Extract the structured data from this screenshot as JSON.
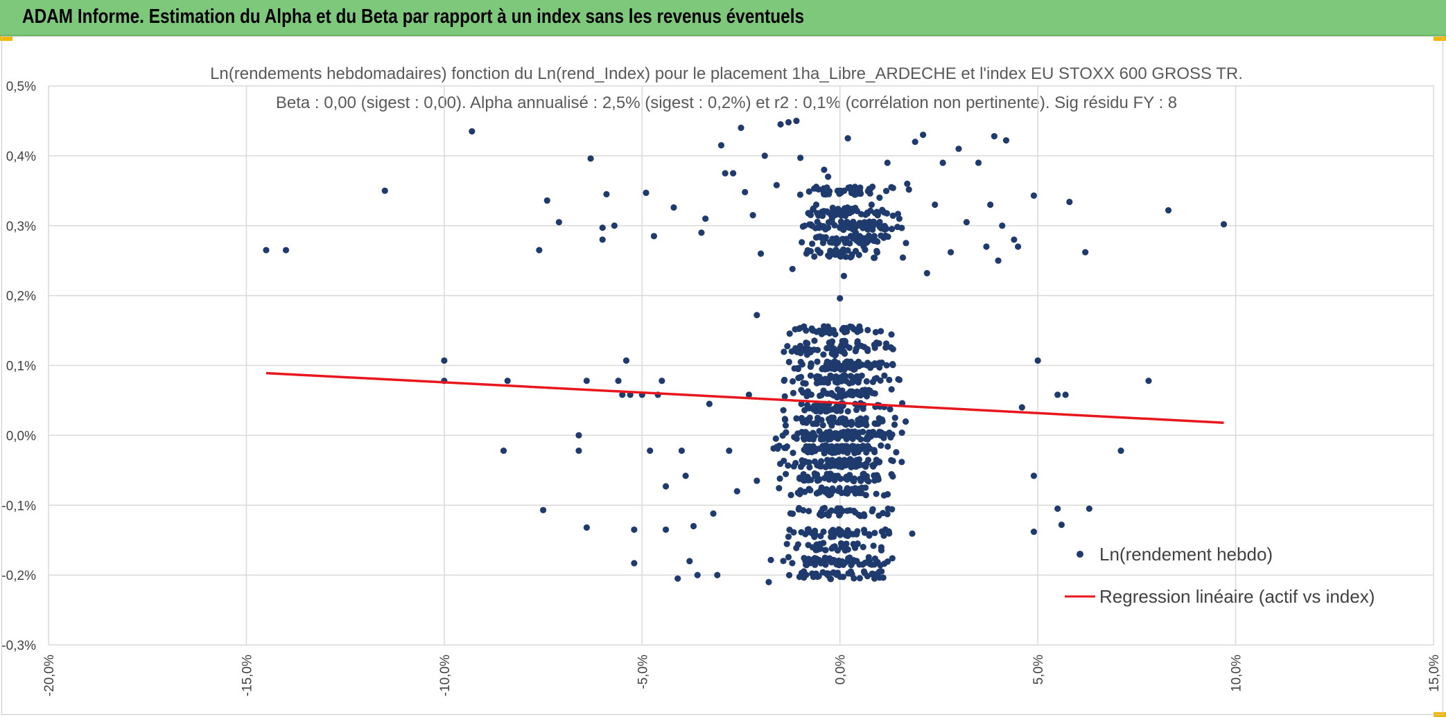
{
  "header": {
    "title": "ADAM Informe. Estimation du Alpha et du Beta par rapport à un index sans les revenus éventuels",
    "bg_color": "#7dc87a",
    "accent_color": "#f2b800"
  },
  "chart_data": {
    "type": "scatter",
    "title": "Ln(rendements hebdomadaires) fonction du Ln(rend_Index) pour le placement 1ha_Libre_ARDECHE et l'index EU STOXX 600 GROSS TR.",
    "subtitle": "Beta : 0,00 (sigest : 0,00). Alpha annualisé : 2,5% (sigest : 0,2%) et r2 : 0,1% (corrélation non pertinente). Sig résidu FY : 8",
    "xlabel": "",
    "ylabel": "",
    "xlim": [
      -0.2,
      0.15
    ],
    "ylim": [
      -0.003,
      0.005
    ],
    "x_ticks": [
      -0.2,
      -0.15,
      -0.1,
      -0.05,
      0,
      0.05,
      0.1,
      0.15
    ],
    "x_tick_labels": [
      "-20,0%",
      "-15,0%",
      "-10,0%",
      "-5,0%",
      "0,0%",
      "5,0%",
      "10,0%",
      "15,0%"
    ],
    "y_ticks": [
      -0.003,
      -0.002,
      -0.001,
      0,
      0.001,
      0.002,
      0.003,
      0.004,
      0.005
    ],
    "y_tick_labels": [
      "-0,3%",
      "-0,2%",
      "-0,1%",
      "0,0%",
      "0,1%",
      "0,2%",
      "0,3%",
      "0,4%",
      "0,5%"
    ],
    "grid": true,
    "legend_position": "bottom-right",
    "series": [
      {
        "name": "Ln(rendement hebdo)",
        "type": "scatter",
        "color": "#1f3b6e",
        "points": [
          [
            -0.145,
            0.00265
          ],
          [
            -0.14,
            0.00265
          ],
          [
            -0.115,
            0.0035
          ],
          [
            -0.093,
            0.00435
          ],
          [
            -0.1,
            0.00107
          ],
          [
            -0.1,
            0.00078
          ],
          [
            -0.084,
            0.00078
          ],
          [
            -0.085,
            -0.00022
          ],
          [
            -0.075,
            -0.00107
          ],
          [
            -0.076,
            0.00265
          ],
          [
            -0.074,
            0.00336
          ],
          [
            -0.071,
            0.00305
          ],
          [
            -0.066,
            0.0
          ],
          [
            -0.066,
            -0.00022
          ],
          [
            -0.064,
            -0.00132
          ],
          [
            -0.064,
            0.00078
          ],
          [
            -0.063,
            0.00396
          ],
          [
            -0.06,
            0.0028
          ],
          [
            -0.06,
            0.00297
          ],
          [
            -0.059,
            0.00345
          ],
          [
            -0.057,
            0.003
          ],
          [
            -0.056,
            0.00078
          ],
          [
            -0.055,
            0.00058
          ],
          [
            -0.054,
            0.00107
          ],
          [
            -0.053,
            0.00058
          ],
          [
            -0.052,
            -0.00135
          ],
          [
            -0.052,
            -0.00183
          ],
          [
            -0.05,
            0.00058
          ],
          [
            -0.049,
            0.00347
          ],
          [
            -0.048,
            -0.00022
          ],
          [
            -0.047,
            0.00285
          ],
          [
            -0.046,
            0.00058
          ],
          [
            -0.045,
            0.00078
          ],
          [
            -0.044,
            -0.00135
          ],
          [
            -0.044,
            -0.00073
          ],
          [
            -0.042,
            0.00326
          ],
          [
            -0.041,
            -0.00205
          ],
          [
            -0.04,
            -0.00022
          ],
          [
            -0.039,
            -0.00058
          ],
          [
            -0.038,
            -0.0018
          ],
          [
            -0.037,
            -0.0013
          ],
          [
            -0.036,
            -0.002
          ],
          [
            -0.035,
            0.0029
          ],
          [
            -0.034,
            0.0031
          ],
          [
            -0.033,
            0.00045
          ],
          [
            -0.032,
            -0.00112
          ],
          [
            -0.031,
            -0.002
          ],
          [
            -0.03,
            0.00415
          ],
          [
            -0.029,
            0.00375
          ],
          [
            -0.028,
            -0.00022
          ],
          [
            -0.027,
            0.00375
          ],
          [
            -0.026,
            -0.0008
          ],
          [
            -0.025,
            0.0044
          ],
          [
            -0.024,
            0.00348
          ],
          [
            -0.023,
            0.00058
          ],
          [
            -0.022,
            0.00315
          ],
          [
            -0.021,
            0.00172
          ],
          [
            -0.021,
            -0.00065
          ],
          [
            -0.02,
            0.0026
          ],
          [
            -0.019,
            0.004
          ],
          [
            -0.018,
            -0.0021
          ],
          [
            -0.016,
            0.00358
          ],
          [
            -0.015,
            0.00445
          ],
          [
            -0.013,
            0.00448
          ],
          [
            -0.012,
            0.00238
          ],
          [
            -0.011,
            0.0045
          ],
          [
            -0.01,
            0.00397
          ],
          [
            -0.008,
            0.00318
          ],
          [
            -0.006,
            0.0033
          ],
          [
            -0.004,
            0.0038
          ],
          [
            -0.003,
            0.0037
          ],
          [
            -0.002,
            0.0031
          ],
          [
            0.0,
            0.00196
          ],
          [
            0.0,
            0.0035
          ],
          [
            0.0,
            0.00297
          ],
          [
            0.001,
            0.00228
          ],
          [
            0.002,
            0.00425
          ],
          [
            0.003,
            0.0032
          ],
          [
            0.004,
            0.0029
          ],
          [
            0.005,
            0.00285
          ],
          [
            0.006,
            0.0027
          ],
          [
            0.008,
            0.0033
          ],
          [
            0.01,
            0.0034
          ],
          [
            0.012,
            0.0039
          ],
          [
            0.013,
            0.00355
          ],
          [
            0.015,
            0.0031
          ],
          [
            0.017,
            0.0036
          ],
          [
            0.019,
            0.0042
          ],
          [
            0.021,
            0.0043
          ],
          [
            0.022,
            0.00232
          ],
          [
            0.024,
            0.0033
          ],
          [
            0.026,
            0.0039
          ],
          [
            0.028,
            0.00262
          ],
          [
            0.03,
            0.0041
          ],
          [
            0.032,
            0.00305
          ],
          [
            0.035,
            0.0039
          ],
          [
            0.037,
            0.0027
          ],
          [
            0.038,
            0.0033
          ],
          [
            0.039,
            0.00428
          ],
          [
            0.04,
            0.0025
          ],
          [
            0.041,
            0.003
          ],
          [
            0.042,
            0.00422
          ],
          [
            0.044,
            0.0028
          ],
          [
            0.045,
            0.0027
          ],
          [
            0.046,
            0.0004
          ],
          [
            0.049,
            0.00343
          ],
          [
            0.05,
            0.00107
          ],
          [
            0.049,
            -0.00058
          ],
          [
            0.049,
            -0.00138
          ],
          [
            0.055,
            0.00058
          ],
          [
            0.055,
            -0.00105
          ],
          [
            0.056,
            -0.00128
          ],
          [
            0.057,
            0.00058
          ],
          [
            0.058,
            0.00334
          ],
          [
            0.062,
            0.00262
          ],
          [
            0.063,
            -0.00105
          ],
          [
            0.071,
            -0.00022
          ],
          [
            0.078,
            0.00078
          ],
          [
            0.083,
            0.00322
          ],
          [
            0.097,
            0.00302
          ]
        ]
      },
      {
        "name": "Regression linéaire (actif vs index)",
        "type": "line",
        "color": "#e8161d",
        "points": [
          [
            -0.145,
            0.00089
          ],
          [
            0.097,
            0.00018
          ]
        ]
      }
    ],
    "clusters": [
      {
        "x_center": 0.003,
        "x_spread": 0.012,
        "y_levels": [
          0.0035,
          0.0032,
          0.003,
          0.0028,
          0.0026
        ],
        "count_per_level": [
          45,
          55,
          65,
          55,
          35
        ]
      },
      {
        "x_center": 0.0,
        "x_spread": 0.014,
        "y_levels": [
          0.0015,
          0.0013,
          0.0012,
          0.001,
          0.0008,
          0.0006,
          0.0004,
          0.0002,
          0.0,
          -0.0002,
          -0.0004,
          -0.0006,
          -0.0008,
          -0.0011,
          -0.0014,
          -0.0016,
          -0.0018,
          -0.002
        ],
        "count_per_level": [
          40,
          30,
          35,
          70,
          60,
          50,
          55,
          65,
          95,
          100,
          75,
          55,
          45,
          40,
          50,
          35,
          60,
          45
        ]
      }
    ]
  }
}
